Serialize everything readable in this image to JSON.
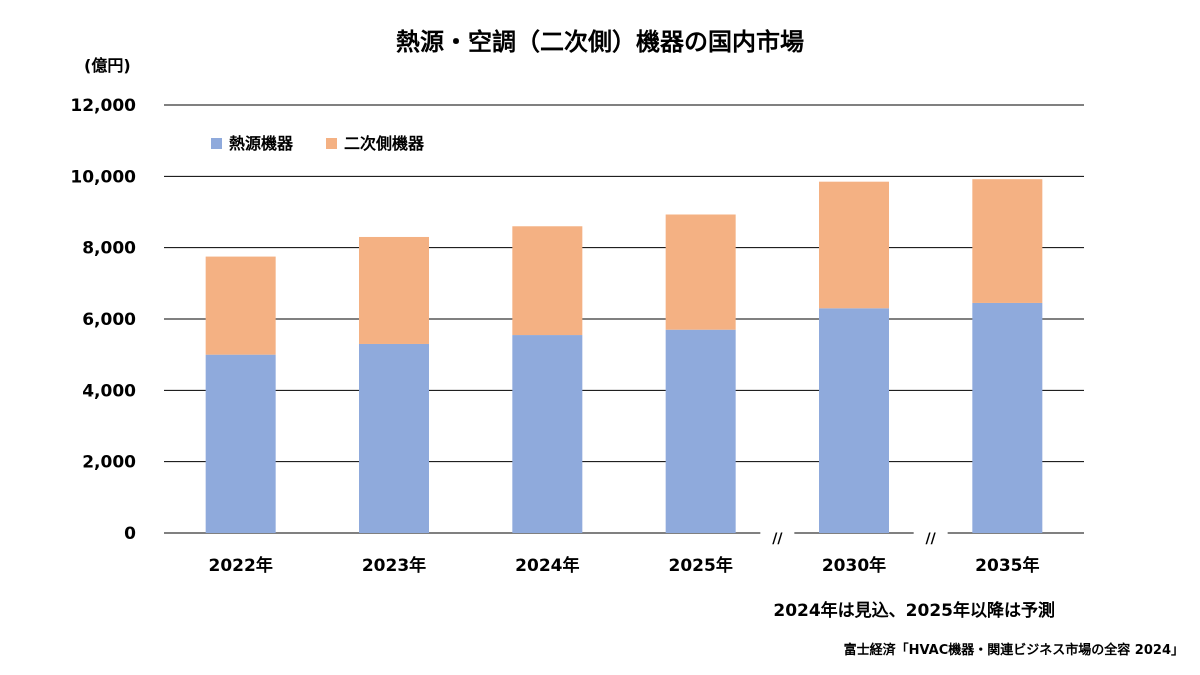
{
  "chart_data": {
    "type": "bar",
    "stacked": true,
    "title": "熱源・空調（二次側）機器の国内市場",
    "ylabel": "(億円)",
    "xlabel": "",
    "categories": [
      "2022年",
      "2023年",
      "2024年",
      "2025年",
      "2030年",
      "2035年"
    ],
    "series": [
      {
        "name": "熱源機器",
        "color": "#8FAADC",
        "values": [
          5000,
          5300,
          5550,
          5700,
          6300,
          6450
        ]
      },
      {
        "name": "二次側機器",
        "color": "#F4B183",
        "values": [
          2750,
          3000,
          3050,
          3230,
          3550,
          3470
        ]
      }
    ],
    "ylim": [
      0,
      12000
    ],
    "yticks": [
      0,
      2000,
      4000,
      6000,
      8000,
      10000,
      12000
    ],
    "ytick_labels": [
      "0",
      "2,000",
      "4,000",
      "6,000",
      "8,000",
      "10,000",
      "12,000"
    ],
    "grid": true,
    "legend_position": "top-left",
    "axis_break_marker": "//",
    "axis_breaks_after": [
      "2025年",
      "2030年"
    ]
  },
  "note": "2024年は見込、2025年以降は予測",
  "source": "富士経済「HVAC機器・関連ビジネス市場の全容 2024」"
}
